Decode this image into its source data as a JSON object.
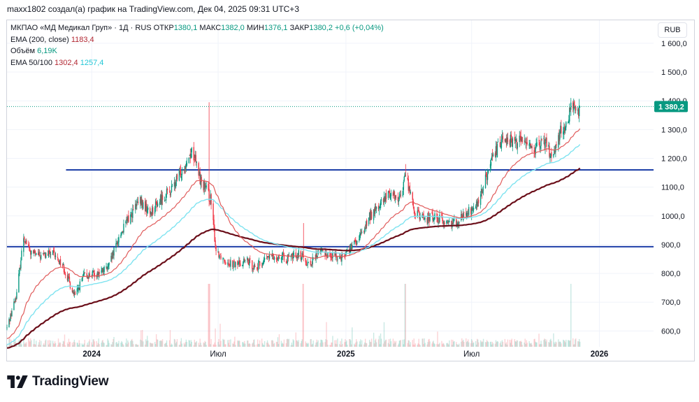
{
  "header": {
    "attribution": "maxx1802 создал(а) график на TradingView.com, Дек 04, 2025 09:31 UTC+3"
  },
  "legend": {
    "symbol": "МКПАО «МД Медикал Груп» · 1Д · RUS",
    "open_label": "ОТКР",
    "open_value": "1380,1",
    "high_label": "МАКС",
    "high_value": "1382,0",
    "low_label": "МИН",
    "low_value": "1376,1",
    "close_label": "ЗАКР",
    "close_value": "1380,2",
    "change": "+0,6 (+0,04%)",
    "ema200_label": "EMA (200, close)",
    "ema200_value": "1183,4",
    "volume_label": "Объём",
    "volume_value": "6,19K",
    "ema50_100_label": "EMA 50/100",
    "ema50_value": "1302,4",
    "ema100_value": "1257,4"
  },
  "currency_button": "RUB",
  "brand": {
    "name": "TradingView"
  },
  "colors": {
    "up": "#089981",
    "down": "#f23645",
    "ema200": "#6b0f1a",
    "ema50": "#e05b5b",
    "ema100": "#7fe3f0",
    "hline": "#1e3fa8",
    "price_badge": "#089981"
  },
  "chart_data": {
    "type": "candlestick",
    "title": "МКПАО «МД Медикал Груп» · 1Д · RUS",
    "ylim": [
      545,
      1680
    ],
    "y_ticks": [
      {
        "value": 600,
        "label": "600,0"
      },
      {
        "value": 700,
        "label": "700,0"
      },
      {
        "value": 800,
        "label": "800,0"
      },
      {
        "value": 900,
        "label": "900,0"
      },
      {
        "value": 1000,
        "label": "1000,0"
      },
      {
        "value": 1100,
        "label": "1100,0"
      },
      {
        "value": 1200,
        "label": "1 200,0"
      },
      {
        "value": 1300,
        "label": "1 300,0"
      },
      {
        "value": 1400,
        "label": "1 400,0"
      },
      {
        "value": 1500,
        "label": "1 500,0"
      },
      {
        "value": 1600,
        "label": "1 600,0"
      }
    ],
    "x_range": [
      "2023-09-01",
      "2026-03-20"
    ],
    "x_ticks": [
      {
        "date": "2024-01-01",
        "label": "2024",
        "bold": true
      },
      {
        "date": "2024-07-01",
        "label": "Июл",
        "bold": false
      },
      {
        "date": "2025-01-01",
        "label": "2025",
        "bold": true
      },
      {
        "date": "2025-07-01",
        "label": "Июл",
        "bold": false
      },
      {
        "date": "2026-01-01",
        "label": "2026",
        "bold": true
      }
    ],
    "horizontal_lines": [
      {
        "price": 1160,
        "color": "#1e3fa8"
      },
      {
        "price": 893,
        "color": "#1e3fa8"
      }
    ],
    "last_price": {
      "value": 1380.2,
      "label": "1 380,2"
    },
    "anchors": [
      [
        "2023-09-01",
        610
      ],
      [
        "2023-09-15",
        730
      ],
      [
        "2023-09-25",
        930
      ],
      [
        "2023-10-05",
        870
      ],
      [
        "2023-10-20",
        860
      ],
      [
        "2023-11-05",
        870
      ],
      [
        "2023-11-20",
        830
      ],
      [
        "2023-12-01",
        760
      ],
      [
        "2023-12-08",
        720
      ],
      [
        "2023-12-20",
        790
      ],
      [
        "2024-01-10",
        800
      ],
      [
        "2024-01-25",
        820
      ],
      [
        "2024-02-10",
        930
      ],
      [
        "2024-02-25",
        1000
      ],
      [
        "2024-03-10",
        1050
      ],
      [
        "2024-03-25",
        1010
      ],
      [
        "2024-04-10",
        1060
      ],
      [
        "2024-04-25",
        1090
      ],
      [
        "2024-05-10",
        1160
      ],
      [
        "2024-05-25",
        1230
      ],
      [
        "2024-06-05",
        1130
      ],
      [
        "2024-06-20",
        1060
      ],
      [
        "2024-06-28",
        880
      ],
      [
        "2024-07-10",
        850
      ],
      [
        "2024-07-25",
        830
      ],
      [
        "2024-08-10",
        845
      ],
      [
        "2024-08-25",
        820
      ],
      [
        "2024-09-10",
        855
      ],
      [
        "2024-09-25",
        860
      ],
      [
        "2024-10-10",
        850
      ],
      [
        "2024-10-25",
        870
      ],
      [
        "2024-11-10",
        830
      ],
      [
        "2024-11-25",
        880
      ],
      [
        "2024-12-10",
        860
      ],
      [
        "2024-12-25",
        860
      ],
      [
        "2025-01-05",
        880
      ],
      [
        "2025-01-20",
        920
      ],
      [
        "2025-02-05",
        1000
      ],
      [
        "2025-02-20",
        1040
      ],
      [
        "2025-03-05",
        1080
      ],
      [
        "2025-03-20",
        1060
      ],
      [
        "2025-03-28",
        1150
      ],
      [
        "2025-04-10",
        1010
      ],
      [
        "2025-04-25",
        990
      ],
      [
        "2025-05-10",
        1000
      ],
      [
        "2025-05-25",
        975
      ],
      [
        "2025-06-10",
        985
      ],
      [
        "2025-06-25",
        1010
      ],
      [
        "2025-07-10",
        1040
      ],
      [
        "2025-07-20",
        1120
      ],
      [
        "2025-08-01",
        1200
      ],
      [
        "2025-08-15",
        1280
      ],
      [
        "2025-09-01",
        1250
      ],
      [
        "2025-09-15",
        1270
      ],
      [
        "2025-10-01",
        1230
      ],
      [
        "2025-10-15",
        1260
      ],
      [
        "2025-10-25",
        1200
      ],
      [
        "2025-11-05",
        1290
      ],
      [
        "2025-11-15",
        1310
      ],
      [
        "2025-11-22",
        1390
      ],
      [
        "2025-11-28",
        1350
      ],
      [
        "2025-12-04",
        1380
      ]
    ],
    "spikes": [
      {
        "date": "2024-06-18",
        "high": 1395
      },
      {
        "date": "2025-03-28",
        "high": 1180
      },
      {
        "date": "2024-11-01",
        "high": 975
      },
      {
        "date": "2025-11-22",
        "high": 1410
      }
    ],
    "ema_periods": [
      50,
      100,
      200
    ],
    "ema200_seed": 540,
    "volume": {
      "label": "Объём",
      "last": "6,19K"
    }
  }
}
